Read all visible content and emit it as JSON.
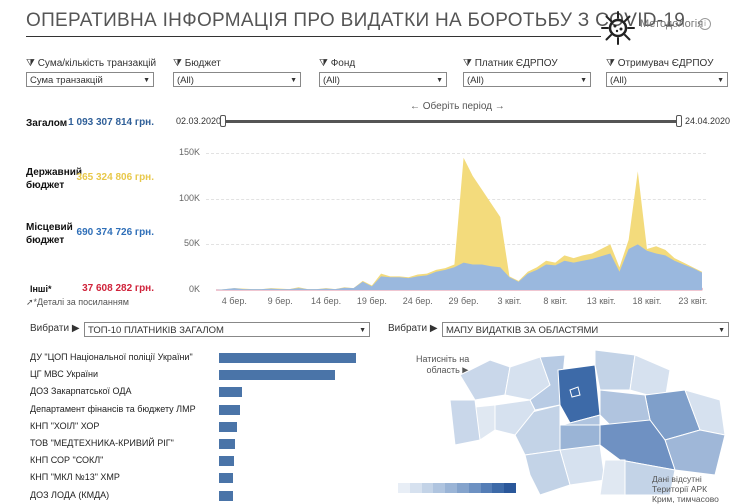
{
  "header": {
    "title": "ОПЕРАТИВНА ІНФОРМАЦІЯ ПРО ВИДАТКИ НА БОРОТЬБУ З COVID-19",
    "methodology": "Методологія",
    "info_icon": "info-icon",
    "logo_icon": "virus-icon"
  },
  "filters": [
    {
      "label": "Сума/кількість транзакцій",
      "value": "Сума транзакцій"
    },
    {
      "label": "Бюджет",
      "value": "(All)"
    },
    {
      "label": "Фонд",
      "value": "(All)"
    },
    {
      "label": "Платник ЄДРПОУ",
      "value": "(All)"
    },
    {
      "label": "Отримувач ЄДРПОУ",
      "value": "(All)"
    }
  ],
  "totals": {
    "total": {
      "label": "Загалом",
      "value": "1 093 307 814 грн.",
      "color": "#2f5f98"
    },
    "state": {
      "label1": "Державний",
      "label2": "бюджет",
      "value": "365 324 806 грн.",
      "color": "#e8c84a"
    },
    "local": {
      "label1": "Місцевий",
      "label2": "бюджет",
      "value": "690 374 726 грн.",
      "color": "#2f6fb8"
    },
    "other": {
      "label": "Інші*",
      "value": "37 608 282 грн.",
      "color": "#d0223a"
    },
    "note": "*Деталі за посиланням",
    "note_icon": "arrow-icon"
  },
  "period": {
    "label": "← Оберіть період →",
    "start": "02.03.2020",
    "end": "24.04.2020"
  },
  "chart_data": {
    "type": "area",
    "x": [
      0,
      1,
      2,
      3,
      4,
      5,
      6,
      7,
      8,
      9,
      10,
      11,
      12,
      13,
      14,
      15,
      16,
      17,
      18,
      19,
      20,
      21,
      22,
      23,
      24,
      25,
      26,
      27,
      28,
      29,
      30,
      31,
      32,
      33,
      34,
      35,
      36,
      37,
      38,
      39,
      40,
      41,
      42,
      43,
      44,
      45,
      46,
      47,
      48,
      49,
      50,
      51,
      52,
      53
    ],
    "x_tick_labels": [
      "4 бер.",
      "9 бер.",
      "14 бер.",
      "19 бер.",
      "24 бер.",
      "29 бер.",
      "3 квіт.",
      "8 квіт.",
      "13 квіт.",
      "18 квіт.",
      "23 квіт."
    ],
    "x_tick_positions": [
      2,
      7,
      12,
      17,
      22,
      27,
      32,
      37,
      42,
      47,
      52
    ],
    "y_tick_labels": [
      "0K",
      "50K",
      "100K",
      "150K"
    ],
    "ylim": [
      0,
      160000
    ],
    "series": [
      {
        "name": "Державний бюджет",
        "color": "#f3db7c",
        "values": [
          0,
          1000,
          2000,
          1500,
          1000,
          1000,
          2000,
          1500,
          1000,
          3000,
          1000,
          1000,
          2000,
          1000,
          3000,
          2000,
          10000,
          5000,
          18000,
          15000,
          15000,
          14000,
          17000,
          18000,
          22000,
          24000,
          28000,
          145000,
          125000,
          110000,
          95000,
          80000,
          15000,
          10000,
          20000,
          25000,
          32000,
          30000,
          38000,
          35000,
          38000,
          40000,
          45000,
          50000,
          25000,
          55000,
          130000,
          45000,
          48000,
          44000,
          35000,
          30000,
          25000,
          20000
        ]
      },
      {
        "name": "Інші",
        "color": "#e88aa0",
        "values": [
          0,
          0,
          0,
          0,
          0,
          0,
          0,
          0,
          0,
          0,
          0,
          0,
          0,
          0,
          0,
          0,
          1000,
          1000,
          1000,
          1000,
          1000,
          1000,
          1000,
          1000,
          1000,
          1000,
          1000,
          2000,
          2000,
          2000,
          1000,
          1000,
          1000,
          2000,
          2000,
          2000,
          3000,
          3000,
          4000,
          4000,
          4000,
          5000,
          5000,
          5000,
          2000,
          4000,
          6000,
          5000,
          6000,
          5000,
          5000,
          4000,
          3000,
          2000
        ]
      },
      {
        "name": "Місцевий бюджет",
        "color": "#9ab8de",
        "values": [
          0,
          1000,
          2000,
          1000,
          1000,
          1000,
          1500,
          1000,
          1000,
          2000,
          1000,
          1000,
          1500,
          1000,
          2500,
          2000,
          9000,
          4000,
          15000,
          14000,
          14000,
          13000,
          15000,
          16000,
          20000,
          22000,
          25000,
          30000,
          28000,
          28000,
          26000,
          25000,
          14000,
          9000,
          18000,
          22000,
          28000,
          27000,
          32000,
          30000,
          32000,
          34000,
          37000,
          40000,
          20000,
          45000,
          50000,
          43000,
          40000,
          38000,
          32000,
          28000,
          24000,
          19000
        ]
      }
    ]
  },
  "selectors": {
    "left": {
      "label": "Вибрати",
      "value": "ТОП-10 ПЛАТНИКІВ ЗАГАЛОМ"
    },
    "right": {
      "label": "Вибрати",
      "value": "МАПУ ВИДАТКІВ ЗА ОБЛАСТЯМИ"
    }
  },
  "bars": [
    {
      "label": "ДУ \"ЦОП Національної поліції України\"",
      "value": 1.0
    },
    {
      "label": "ЦГ МВС України",
      "value": 0.85
    },
    {
      "label": "ДОЗ Закарпатської ОДА",
      "value": 0.17
    },
    {
      "label": "Департамент фінансів та бюджету ЛМР",
      "value": 0.15
    },
    {
      "label": "КНП \"ХОІЛ\" ХОР",
      "value": 0.13
    },
    {
      "label": "ТОВ \"МЕДТЕХНИКА-КРИВИЙ РІГ\"",
      "value": 0.12
    },
    {
      "label": "КНП СОР \"СОКЛ\"",
      "value": 0.11
    },
    {
      "label": "КНП \"МКЛ №13\" ХМР",
      "value": 0.1
    },
    {
      "label": "ДОЗ ЛОДА (КМДА)",
      "value": 0.1
    }
  ],
  "map": {
    "hint1": "Натисніть на",
    "hint2": "область ▶",
    "note1": "Дані відсутні",
    "note2": "Території АРК",
    "note3": "Крим, тимчасово",
    "legend_colors": [
      "#e8eef6",
      "#d6e1ef",
      "#c3d3e7",
      "#afc4df",
      "#9ab4d6",
      "#84a3cc",
      "#6d91c2",
      "#547db6",
      "#3d6aa8",
      "#2a579a"
    ]
  }
}
